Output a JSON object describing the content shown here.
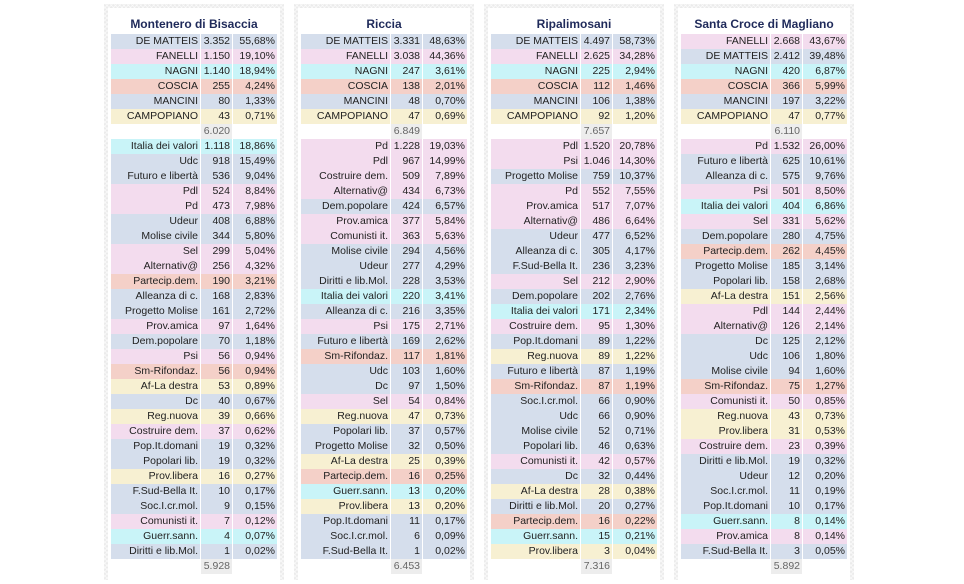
{
  "palette": {
    "blue": "#d5deec",
    "pink": "#f3dcee",
    "cyan": "#c9f4f8",
    "salmon": "#f4d0c8",
    "yellow": "#f7f0d2"
  },
  "panels": [
    {
      "title": "Montenero di Bisaccia",
      "candidates": [
        {
          "name": "DE MATTEIS",
          "votes": "3.352",
          "pct": "55,68%",
          "color": "blue"
        },
        {
          "name": "FANELLI",
          "votes": "1.150",
          "pct": "19,10%",
          "color": "pink"
        },
        {
          "name": "NAGNI",
          "votes": "1.140",
          "pct": "18,94%",
          "color": "cyan"
        },
        {
          "name": "COSCIA",
          "votes": "255",
          "pct": "4,24%",
          "color": "salmon"
        },
        {
          "name": "MANCINI",
          "votes": "80",
          "pct": "1,33%",
          "color": "blue"
        },
        {
          "name": "CAMPOPIANO",
          "votes": "43",
          "pct": "0,71%",
          "color": "yellow"
        }
      ],
      "candidates_total": "6.020",
      "lists": [
        {
          "name": "Italia dei valori",
          "votes": "1.118",
          "pct": "18,86%",
          "color": "cyan"
        },
        {
          "name": "Udc",
          "votes": "918",
          "pct": "15,49%",
          "color": "blue"
        },
        {
          "name": "Futuro e libertà",
          "votes": "536",
          "pct": "9,04%",
          "color": "blue"
        },
        {
          "name": "Pdl",
          "votes": "524",
          "pct": "8,84%",
          "color": "pink"
        },
        {
          "name": "Pd",
          "votes": "473",
          "pct": "7,98%",
          "color": "pink"
        },
        {
          "name": "Udeur",
          "votes": "408",
          "pct": "6,88%",
          "color": "blue"
        },
        {
          "name": "Molise civile",
          "votes": "344",
          "pct": "5,80%",
          "color": "blue"
        },
        {
          "name": "Sel",
          "votes": "299",
          "pct": "5,04%",
          "color": "pink"
        },
        {
          "name": "Alternativ@",
          "votes": "256",
          "pct": "4,32%",
          "color": "pink"
        },
        {
          "name": "Partecip.dem.",
          "votes": "190",
          "pct": "3,21%",
          "color": "salmon"
        },
        {
          "name": "Alleanza di c.",
          "votes": "168",
          "pct": "2,83%",
          "color": "blue"
        },
        {
          "name": "Progetto Molise",
          "votes": "161",
          "pct": "2,72%",
          "color": "blue"
        },
        {
          "name": "Prov.amica",
          "votes": "97",
          "pct": "1,64%",
          "color": "pink"
        },
        {
          "name": "Dem.popolare",
          "votes": "70",
          "pct": "1,18%",
          "color": "blue"
        },
        {
          "name": "Psi",
          "votes": "56",
          "pct": "0,94%",
          "color": "pink"
        },
        {
          "name": "Sm-Rifondaz.",
          "votes": "56",
          "pct": "0,94%",
          "color": "salmon"
        },
        {
          "name": "Af-La destra",
          "votes": "53",
          "pct": "0,89%",
          "color": "yellow"
        },
        {
          "name": "Dc",
          "votes": "40",
          "pct": "0,67%",
          "color": "blue"
        },
        {
          "name": "Reg.nuova",
          "votes": "39",
          "pct": "0,66%",
          "color": "yellow"
        },
        {
          "name": "Costruire dem.",
          "votes": "37",
          "pct": "0,62%",
          "color": "pink"
        },
        {
          "name": "Pop.It.domani",
          "votes": "19",
          "pct": "0,32%",
          "color": "blue"
        },
        {
          "name": "Popolari lib.",
          "votes": "19",
          "pct": "0,32%",
          "color": "blue"
        },
        {
          "name": "Prov.libera",
          "votes": "16",
          "pct": "0,27%",
          "color": "yellow"
        },
        {
          "name": "F.Sud-Bella It.",
          "votes": "10",
          "pct": "0,17%",
          "color": "blue"
        },
        {
          "name": "Soc.I.cr.mol.",
          "votes": "9",
          "pct": "0,15%",
          "color": "blue"
        },
        {
          "name": "Comunisti it.",
          "votes": "7",
          "pct": "0,12%",
          "color": "pink"
        },
        {
          "name": "Guerr.sann.",
          "votes": "4",
          "pct": "0,07%",
          "color": "cyan"
        },
        {
          "name": "Diritti e lib.Mol.",
          "votes": "1",
          "pct": "0,02%",
          "color": "blue"
        }
      ],
      "lists_total": "5.928"
    },
    {
      "title": "Riccia",
      "candidates": [
        {
          "name": "DE MATTEIS",
          "votes": "3.331",
          "pct": "48,63%",
          "color": "blue"
        },
        {
          "name": "FANELLI",
          "votes": "3.038",
          "pct": "44,36%",
          "color": "pink"
        },
        {
          "name": "NAGNI",
          "votes": "247",
          "pct": "3,61%",
          "color": "cyan"
        },
        {
          "name": "COSCIA",
          "votes": "138",
          "pct": "2,01%",
          "color": "salmon"
        },
        {
          "name": "MANCINI",
          "votes": "48",
          "pct": "0,70%",
          "color": "blue"
        },
        {
          "name": "CAMPOPIANO",
          "votes": "47",
          "pct": "0,69%",
          "color": "yellow"
        }
      ],
      "candidates_total": "6.849",
      "lists": [
        {
          "name": "Pd",
          "votes": "1.228",
          "pct": "19,03%",
          "color": "pink"
        },
        {
          "name": "Pdl",
          "votes": "967",
          "pct": "14,99%",
          "color": "pink"
        },
        {
          "name": "Costruire dem.",
          "votes": "509",
          "pct": "7,89%",
          "color": "pink"
        },
        {
          "name": "Alternativ@",
          "votes": "434",
          "pct": "6,73%",
          "color": "pink"
        },
        {
          "name": "Dem.popolare",
          "votes": "424",
          "pct": "6,57%",
          "color": "blue"
        },
        {
          "name": "Prov.amica",
          "votes": "377",
          "pct": "5,84%",
          "color": "pink"
        },
        {
          "name": "Comunisti it.",
          "votes": "363",
          "pct": "5,63%",
          "color": "pink"
        },
        {
          "name": "Molise civile",
          "votes": "294",
          "pct": "4,56%",
          "color": "blue"
        },
        {
          "name": "Udeur",
          "votes": "277",
          "pct": "4,29%",
          "color": "blue"
        },
        {
          "name": "Diritti e lib.Mol.",
          "votes": "228",
          "pct": "3,53%",
          "color": "blue"
        },
        {
          "name": "Italia dei valori",
          "votes": "220",
          "pct": "3,41%",
          "color": "cyan"
        },
        {
          "name": "Alleanza di c.",
          "votes": "216",
          "pct": "3,35%",
          "color": "blue"
        },
        {
          "name": "Psi",
          "votes": "175",
          "pct": "2,71%",
          "color": "pink"
        },
        {
          "name": "Futuro e libertà",
          "votes": "169",
          "pct": "2,62%",
          "color": "blue"
        },
        {
          "name": "Sm-Rifondaz.",
          "votes": "117",
          "pct": "1,81%",
          "color": "salmon"
        },
        {
          "name": "Udc",
          "votes": "103",
          "pct": "1,60%",
          "color": "blue"
        },
        {
          "name": "Dc",
          "votes": "97",
          "pct": "1,50%",
          "color": "blue"
        },
        {
          "name": "Sel",
          "votes": "54",
          "pct": "0,84%",
          "color": "pink"
        },
        {
          "name": "Reg.nuova",
          "votes": "47",
          "pct": "0,73%",
          "color": "yellow"
        },
        {
          "name": "Popolari lib.",
          "votes": "37",
          "pct": "0,57%",
          "color": "blue"
        },
        {
          "name": "Progetto Molise",
          "votes": "32",
          "pct": "0,50%",
          "color": "blue"
        },
        {
          "name": "Af-La destra",
          "votes": "25",
          "pct": "0,39%",
          "color": "yellow"
        },
        {
          "name": "Partecip.dem.",
          "votes": "16",
          "pct": "0,25%",
          "color": "salmon"
        },
        {
          "name": "Guerr.sann.",
          "votes": "13",
          "pct": "0,20%",
          "color": "cyan"
        },
        {
          "name": "Prov.libera",
          "votes": "13",
          "pct": "0,20%",
          "color": "yellow"
        },
        {
          "name": "Pop.It.domani",
          "votes": "11",
          "pct": "0,17%",
          "color": "blue"
        },
        {
          "name": "Soc.I.cr.mol.",
          "votes": "6",
          "pct": "0,09%",
          "color": "blue"
        },
        {
          "name": "F.Sud-Bella It.",
          "votes": "1",
          "pct": "0,02%",
          "color": "blue"
        }
      ],
      "lists_total": "6.453"
    },
    {
      "title": "Ripalimosani",
      "candidates": [
        {
          "name": "DE MATTEIS",
          "votes": "4.497",
          "pct": "58,73%",
          "color": "blue"
        },
        {
          "name": "FANELLI",
          "votes": "2.625",
          "pct": "34,28%",
          "color": "pink"
        },
        {
          "name": "NAGNI",
          "votes": "225",
          "pct": "2,94%",
          "color": "cyan"
        },
        {
          "name": "COSCIA",
          "votes": "112",
          "pct": "1,46%",
          "color": "salmon"
        },
        {
          "name": "MANCINI",
          "votes": "106",
          "pct": "1,38%",
          "color": "blue"
        },
        {
          "name": "CAMPOPIANO",
          "votes": "92",
          "pct": "1,20%",
          "color": "yellow"
        }
      ],
      "candidates_total": "7.657",
      "lists": [
        {
          "name": "Pdl",
          "votes": "1.520",
          "pct": "20,78%",
          "color": "pink"
        },
        {
          "name": "Psi",
          "votes": "1.046",
          "pct": "14,30%",
          "color": "pink"
        },
        {
          "name": "Progetto Molise",
          "votes": "759",
          "pct": "10,37%",
          "color": "blue"
        },
        {
          "name": "Pd",
          "votes": "552",
          "pct": "7,55%",
          "color": "pink"
        },
        {
          "name": "Prov.amica",
          "votes": "517",
          "pct": "7,07%",
          "color": "pink"
        },
        {
          "name": "Alternativ@",
          "votes": "486",
          "pct": "6,64%",
          "color": "pink"
        },
        {
          "name": "Udeur",
          "votes": "477",
          "pct": "6,52%",
          "color": "blue"
        },
        {
          "name": "Alleanza di c.",
          "votes": "305",
          "pct": "4,17%",
          "color": "blue"
        },
        {
          "name": "F.Sud-Bella It.",
          "votes": "236",
          "pct": "3,23%",
          "color": "blue"
        },
        {
          "name": "Sel",
          "votes": "212",
          "pct": "2,90%",
          "color": "pink"
        },
        {
          "name": "Dem.popolare",
          "votes": "202",
          "pct": "2,76%",
          "color": "blue"
        },
        {
          "name": "Italia dei valori",
          "votes": "171",
          "pct": "2,34%",
          "color": "cyan"
        },
        {
          "name": "Costruire dem.",
          "votes": "95",
          "pct": "1,30%",
          "color": "pink"
        },
        {
          "name": "Pop.It.domani",
          "votes": "89",
          "pct": "1,22%",
          "color": "blue"
        },
        {
          "name": "Reg.nuova",
          "votes": "89",
          "pct": "1,22%",
          "color": "yellow"
        },
        {
          "name": "Futuro e libertà",
          "votes": "87",
          "pct": "1,19%",
          "color": "blue"
        },
        {
          "name": "Sm-Rifondaz.",
          "votes": "87",
          "pct": "1,19%",
          "color": "salmon"
        },
        {
          "name": "Soc.I.cr.mol.",
          "votes": "66",
          "pct": "0,90%",
          "color": "blue"
        },
        {
          "name": "Udc",
          "votes": "66",
          "pct": "0,90%",
          "color": "blue"
        },
        {
          "name": "Molise civile",
          "votes": "52",
          "pct": "0,71%",
          "color": "blue"
        },
        {
          "name": "Popolari lib.",
          "votes": "46",
          "pct": "0,63%",
          "color": "blue"
        },
        {
          "name": "Comunisti it.",
          "votes": "42",
          "pct": "0,57%",
          "color": "pink"
        },
        {
          "name": "Dc",
          "votes": "32",
          "pct": "0,44%",
          "color": "blue"
        },
        {
          "name": "Af-La destra",
          "votes": "28",
          "pct": "0,38%",
          "color": "yellow"
        },
        {
          "name": "Diritti e lib.Mol.",
          "votes": "20",
          "pct": "0,27%",
          "color": "blue"
        },
        {
          "name": "Partecip.dem.",
          "votes": "16",
          "pct": "0,22%",
          "color": "salmon"
        },
        {
          "name": "Guerr.sann.",
          "votes": "15",
          "pct": "0,21%",
          "color": "cyan"
        },
        {
          "name": "Prov.libera",
          "votes": "3",
          "pct": "0,04%",
          "color": "yellow"
        }
      ],
      "lists_total": "7.316"
    },
    {
      "title": "Santa Croce di Magliano",
      "candidates": [
        {
          "name": "FANELLI",
          "votes": "2.668",
          "pct": "43,67%",
          "color": "pink"
        },
        {
          "name": "DE MATTEIS",
          "votes": "2.412",
          "pct": "39,48%",
          "color": "blue"
        },
        {
          "name": "NAGNI",
          "votes": "420",
          "pct": "6,87%",
          "color": "cyan"
        },
        {
          "name": "COSCIA",
          "votes": "366",
          "pct": "5,99%",
          "color": "salmon"
        },
        {
          "name": "MANCINI",
          "votes": "197",
          "pct": "3,22%",
          "color": "blue"
        },
        {
          "name": "CAMPOPIANO",
          "votes": "47",
          "pct": "0,77%",
          "color": "yellow"
        }
      ],
      "candidates_total": "6.110",
      "lists": [
        {
          "name": "Pd",
          "votes": "1.532",
          "pct": "26,00%",
          "color": "pink"
        },
        {
          "name": "Futuro e libertà",
          "votes": "625",
          "pct": "10,61%",
          "color": "blue"
        },
        {
          "name": "Alleanza di c.",
          "votes": "575",
          "pct": "9,76%",
          "color": "blue"
        },
        {
          "name": "Psi",
          "votes": "501",
          "pct": "8,50%",
          "color": "pink"
        },
        {
          "name": "Italia dei valori",
          "votes": "404",
          "pct": "6,86%",
          "color": "cyan"
        },
        {
          "name": "Sel",
          "votes": "331",
          "pct": "5,62%",
          "color": "pink"
        },
        {
          "name": "Dem.popolare",
          "votes": "280",
          "pct": "4,75%",
          "color": "blue"
        },
        {
          "name": "Partecip.dem.",
          "votes": "262",
          "pct": "4,45%",
          "color": "salmon"
        },
        {
          "name": "Progetto Molise",
          "votes": "185",
          "pct": "3,14%",
          "color": "blue"
        },
        {
          "name": "Popolari lib.",
          "votes": "158",
          "pct": "2,68%",
          "color": "blue"
        },
        {
          "name": "Af-La destra",
          "votes": "151",
          "pct": "2,56%",
          "color": "yellow"
        },
        {
          "name": "Pdl",
          "votes": "144",
          "pct": "2,44%",
          "color": "pink"
        },
        {
          "name": "Alternativ@",
          "votes": "126",
          "pct": "2,14%",
          "color": "pink"
        },
        {
          "name": "Dc",
          "votes": "125",
          "pct": "2,12%",
          "color": "blue"
        },
        {
          "name": "Udc",
          "votes": "106",
          "pct": "1,80%",
          "color": "blue"
        },
        {
          "name": "Molise civile",
          "votes": "94",
          "pct": "1,60%",
          "color": "blue"
        },
        {
          "name": "Sm-Rifondaz.",
          "votes": "75",
          "pct": "1,27%",
          "color": "salmon"
        },
        {
          "name": "Comunisti it.",
          "votes": "50",
          "pct": "0,85%",
          "color": "pink"
        },
        {
          "name": "Reg.nuova",
          "votes": "43",
          "pct": "0,73%",
          "color": "yellow"
        },
        {
          "name": "Prov.libera",
          "votes": "31",
          "pct": "0,53%",
          "color": "yellow"
        },
        {
          "name": "Costruire dem.",
          "votes": "23",
          "pct": "0,39%",
          "color": "pink"
        },
        {
          "name": "Diritti e lib.Mol.",
          "votes": "19",
          "pct": "0,32%",
          "color": "blue"
        },
        {
          "name": "Udeur",
          "votes": "12",
          "pct": "0,20%",
          "color": "blue"
        },
        {
          "name": "Soc.I.cr.mol.",
          "votes": "11",
          "pct": "0,19%",
          "color": "blue"
        },
        {
          "name": "Pop.It.domani",
          "votes": "10",
          "pct": "0,17%",
          "color": "blue"
        },
        {
          "name": "Guerr.sann.",
          "votes": "8",
          "pct": "0,14%",
          "color": "cyan"
        },
        {
          "name": "Prov.amica",
          "votes": "8",
          "pct": "0,14%",
          "color": "pink"
        },
        {
          "name": "F.Sud-Bella It.",
          "votes": "3",
          "pct": "0,05%",
          "color": "blue"
        }
      ],
      "lists_total": "5.892"
    }
  ]
}
